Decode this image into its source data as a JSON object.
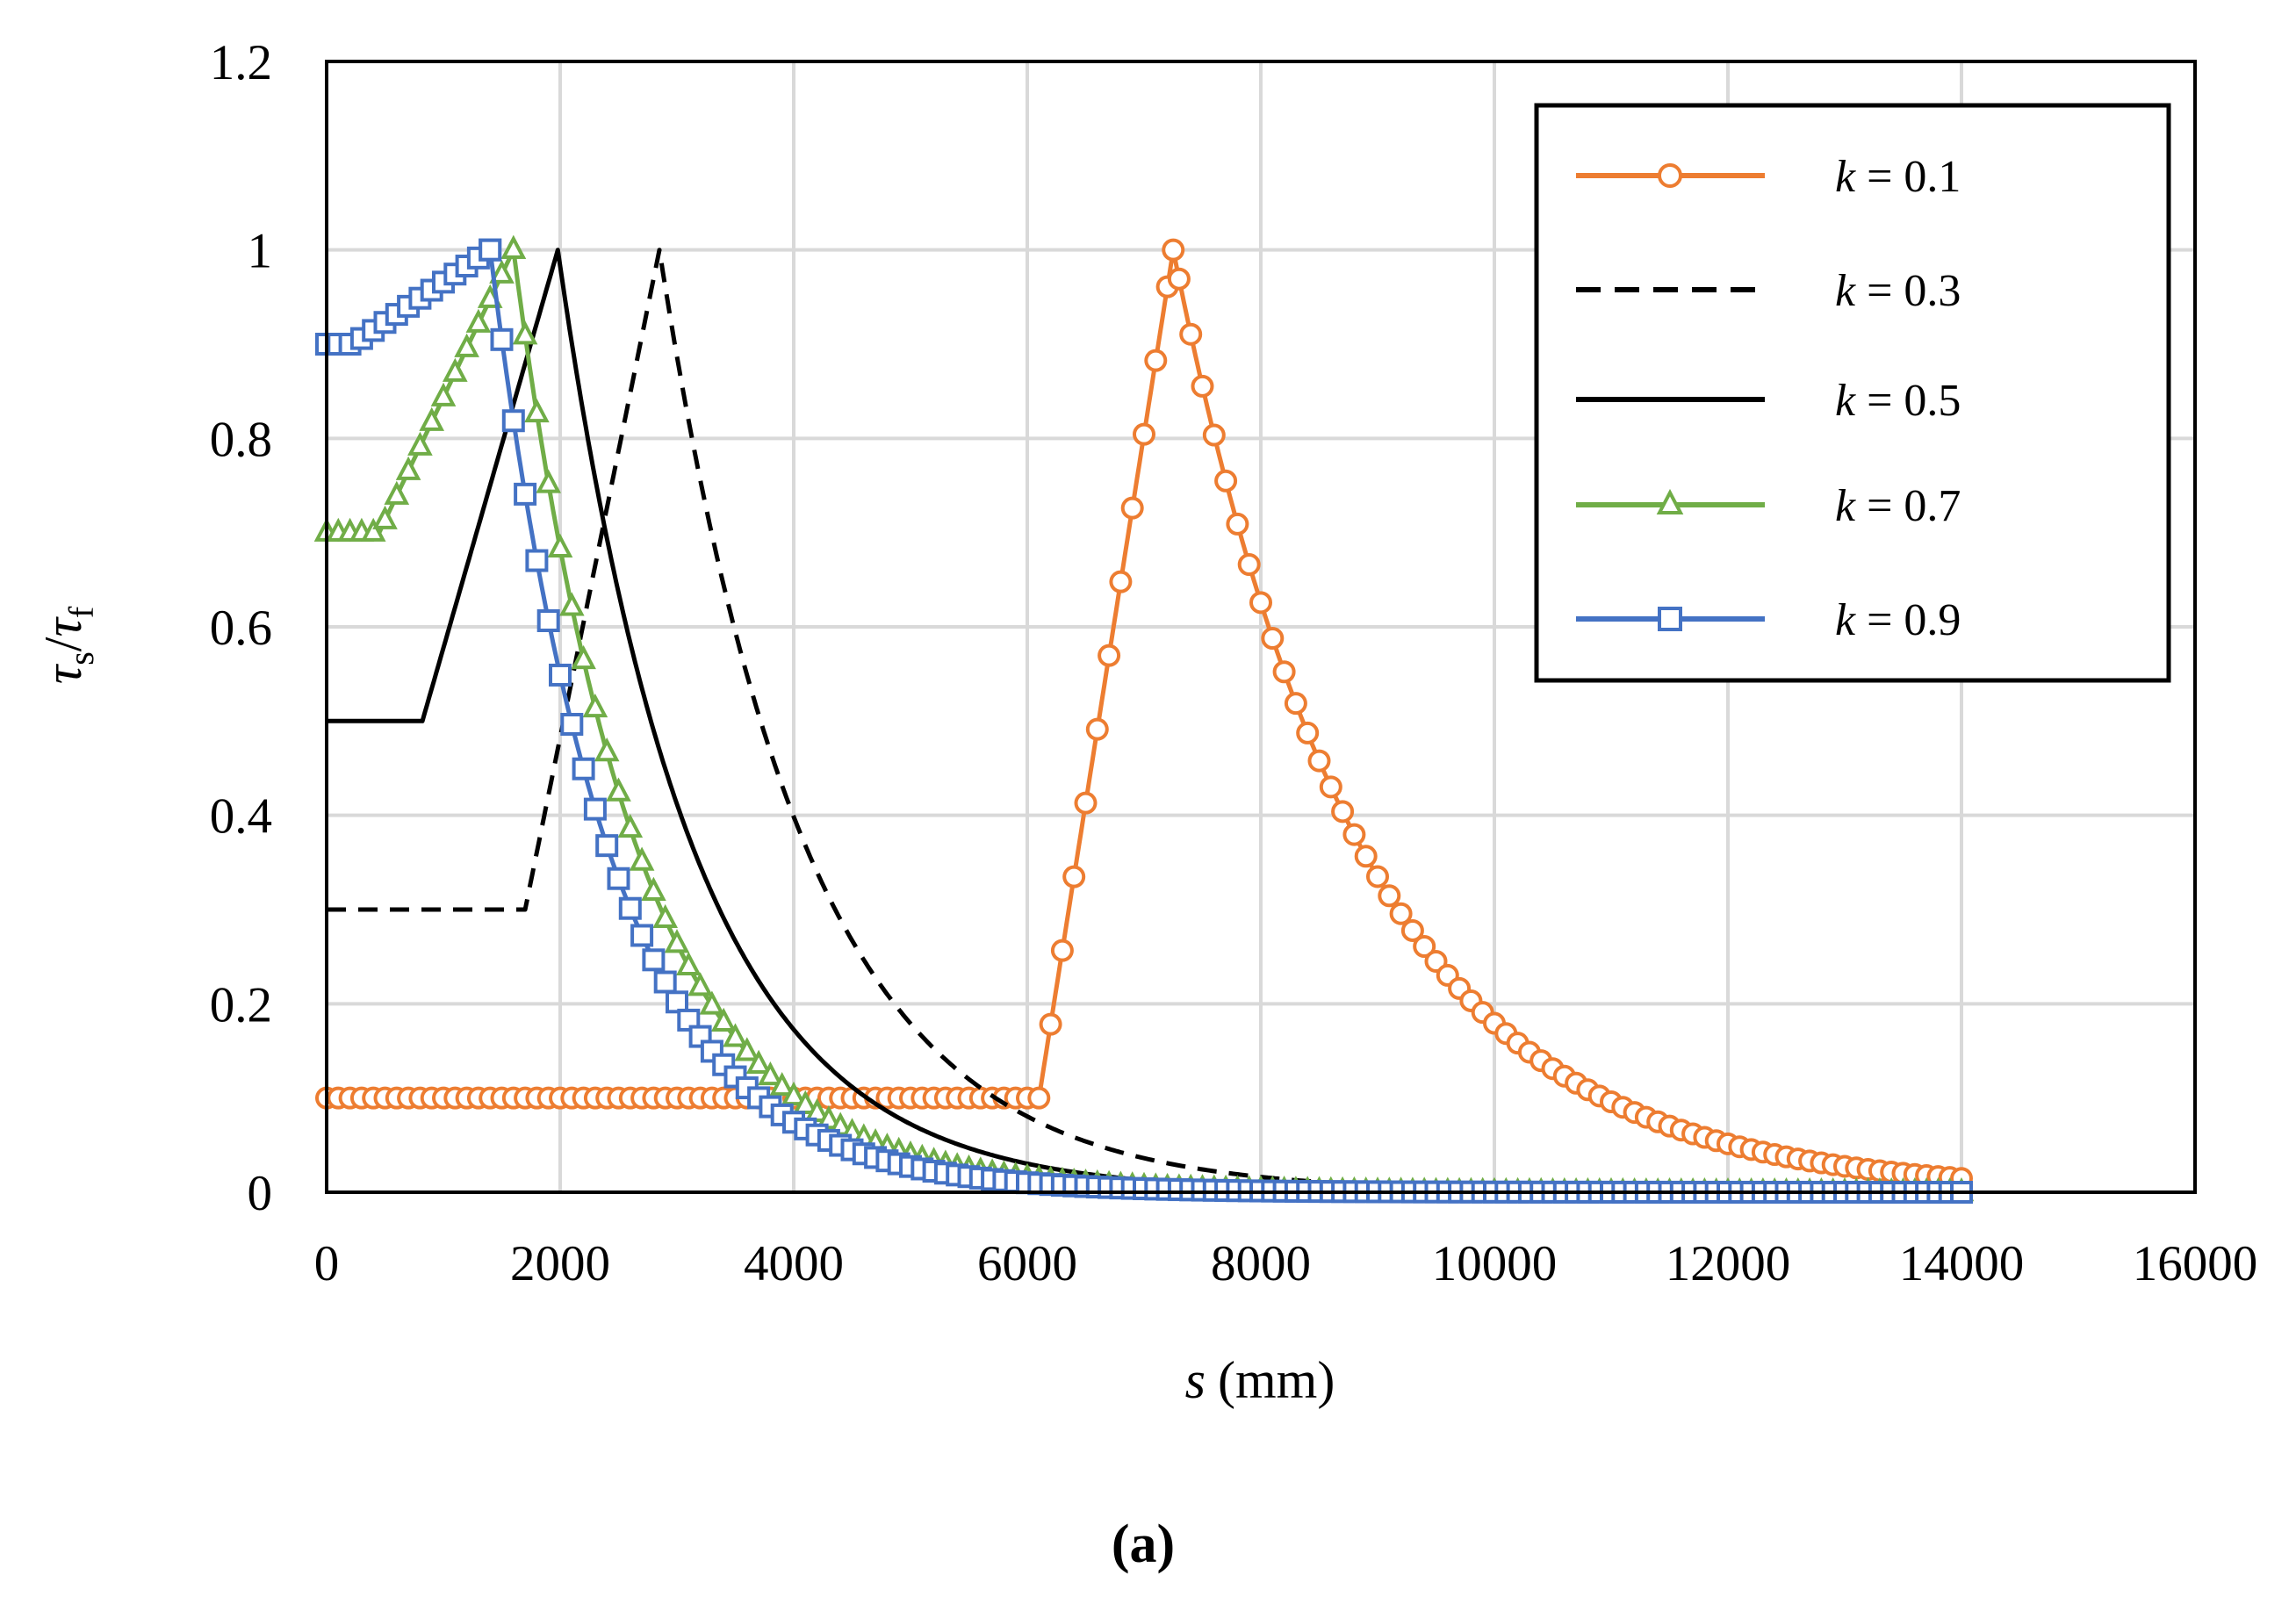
{
  "chart_data": {
    "type": "line",
    "title": "",
    "caption": "(a)",
    "xlabel": {
      "var": "s",
      "unit": "(mm)"
    },
    "ylabel": {
      "tau": "τ",
      "sub_num": "s",
      "slash": "/",
      "sub_den": "f"
    },
    "xlim": [
      0,
      16000
    ],
    "ylim": [
      0,
      1.2
    ],
    "x_ticks": [
      {
        "v": 0,
        "label": "0"
      },
      {
        "v": 2000,
        "label": "2000"
      },
      {
        "v": 4000,
        "label": "4000"
      },
      {
        "v": 6000,
        "label": "6000"
      },
      {
        "v": 8000,
        "label": "8000"
      },
      {
        "v": 10000,
        "label": "10000"
      },
      {
        "v": 12000,
        "label": "12000"
      },
      {
        "v": 14000,
        "label": "14000"
      },
      {
        "v": 16000,
        "label": "16000"
      }
    ],
    "y_ticks": [
      {
        "v": 0,
        "label": "0"
      },
      {
        "v": 0.2,
        "label": "0.2"
      },
      {
        "v": 0.4,
        "label": "0.4"
      },
      {
        "v": 0.6,
        "label": "0.6"
      },
      {
        "v": 0.8,
        "label": "0.8"
      },
      {
        "v": 1.0,
        "label": "1"
      },
      {
        "v": 1.2,
        "label": "1.2"
      }
    ],
    "grid": true,
    "legend_position": "top-right",
    "s_max": 14000,
    "marker_step": 100,
    "series": [
      {
        "name": "k = 0.1",
        "k_label": "k",
        "value_label": " = 0.1",
        "k": 0.1,
        "s_start": 6100,
        "s_peak": 7250,
        "decay": 1600,
        "color": "#ED7D31",
        "style": "solid",
        "marker": "circle"
      },
      {
        "name": "k = 0.3",
        "k_label": "k",
        "value_label": " = 0.3",
        "k": 0.3,
        "s_start": 1700,
        "s_peak": 2850,
        "decay": 1250,
        "color": "#000000",
        "style": "dashed",
        "marker": "none"
      },
      {
        "name": "k = 0.5",
        "k_label": "k",
        "value_label": " = 0.5",
        "k": 0.5,
        "s_start": 820,
        "s_peak": 1980,
        "decay": 1150,
        "color": "#000000",
        "style": "solid",
        "marker": "none"
      },
      {
        "name": "k = 0.7",
        "k_label": "k",
        "value_label": " = 0.7",
        "k": 0.7,
        "s_start": 450,
        "s_peak": 1600,
        "decay": 1050,
        "color": "#70AD47",
        "style": "solid",
        "marker": "triangle"
      },
      {
        "name": "k = 0.9",
        "k_label": "k",
        "value_label": " = 0.9",
        "k": 0.9,
        "s_start": 230,
        "s_peak": 1400,
        "decay": 1000,
        "color": "#4472C4",
        "style": "solid",
        "marker": "square"
      }
    ]
  }
}
